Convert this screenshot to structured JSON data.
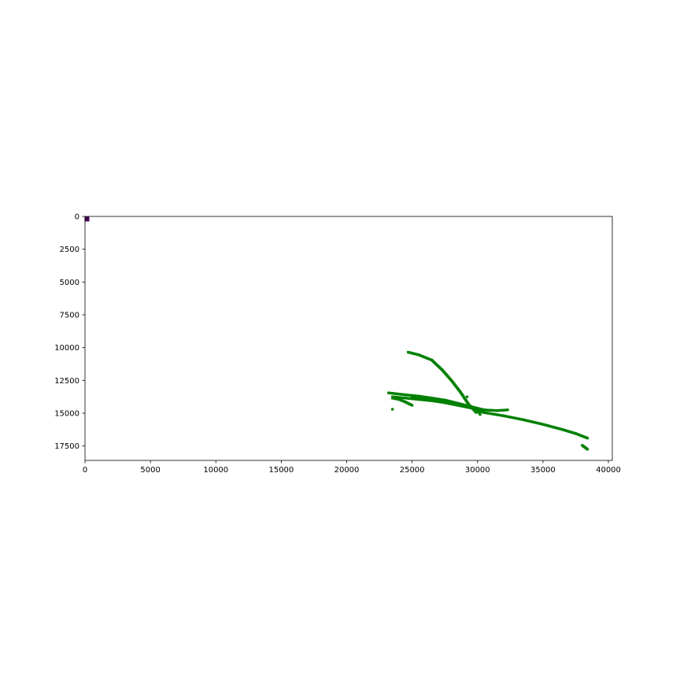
{
  "chart_data": {
    "type": "scatter",
    "title": "",
    "xlabel": "",
    "ylabel": "",
    "xlim": [
      0,
      40300
    ],
    "ylim": [
      18600,
      0
    ],
    "y_inverted": true,
    "grid": false,
    "x_ticks": [
      0,
      5000,
      10000,
      15000,
      20000,
      25000,
      30000,
      35000,
      40000
    ],
    "y_ticks": [
      0,
      2500,
      5000,
      7500,
      10000,
      12500,
      15000,
      17500
    ],
    "colors": {
      "series": "#008000",
      "marker": "#440154"
    },
    "marker": {
      "x": 150,
      "y": 200,
      "color": "#440154"
    },
    "series": [
      {
        "color": "#008000",
        "segments": [
          [
            [
              24700,
              10350
            ],
            [
              25500,
              10550
            ],
            [
              26500,
              10950
            ],
            [
              27300,
              11700
            ],
            [
              28000,
              12500
            ],
            [
              28700,
              13400
            ],
            [
              29300,
              14300
            ],
            [
              29900,
              14950
            ]
          ],
          [
            [
              23200,
              13450
            ],
            [
              24500,
              13600
            ],
            [
              25500,
              13700
            ],
            [
              26500,
              13850
            ],
            [
              27500,
              14000
            ],
            [
              28500,
              14250
            ],
            [
              29500,
              14500
            ],
            [
              30500,
              14750
            ],
            [
              31500,
              14800
            ],
            [
              32300,
              14750
            ]
          ],
          [
            [
              23500,
              13750
            ],
            [
              24500,
              13850
            ],
            [
              25500,
              13950
            ],
            [
              26500,
              14050
            ],
            [
              27500,
              14200
            ],
            [
              28500,
              14400
            ],
            [
              29500,
              14600
            ],
            [
              30500,
              14950
            ],
            [
              32000,
              15200
            ],
            [
              33500,
              15500
            ],
            [
              35000,
              15850
            ],
            [
              36500,
              16250
            ],
            [
              37500,
              16550
            ],
            [
              38400,
              16900
            ]
          ],
          [
            [
              23500,
              13850
            ],
            [
              24000,
              13950
            ],
            [
              24500,
              14150
            ],
            [
              25000,
              14400
            ]
          ],
          [
            [
              25000,
              13750
            ],
            [
              26000,
              13850
            ],
            [
              27000,
              14000
            ],
            [
              28000,
              14200
            ],
            [
              28800,
              14350
            ],
            [
              29500,
              14500
            ],
            [
              30000,
              14700
            ],
            [
              30200,
              15100
            ]
          ],
          [
            [
              38000,
              17450
            ],
            [
              38200,
              17600
            ],
            [
              38400,
              17750
            ]
          ]
        ],
        "isolated_points": [
          [
            23500,
            14700
          ],
          [
            29200,
            13750
          ]
        ]
      }
    ]
  }
}
